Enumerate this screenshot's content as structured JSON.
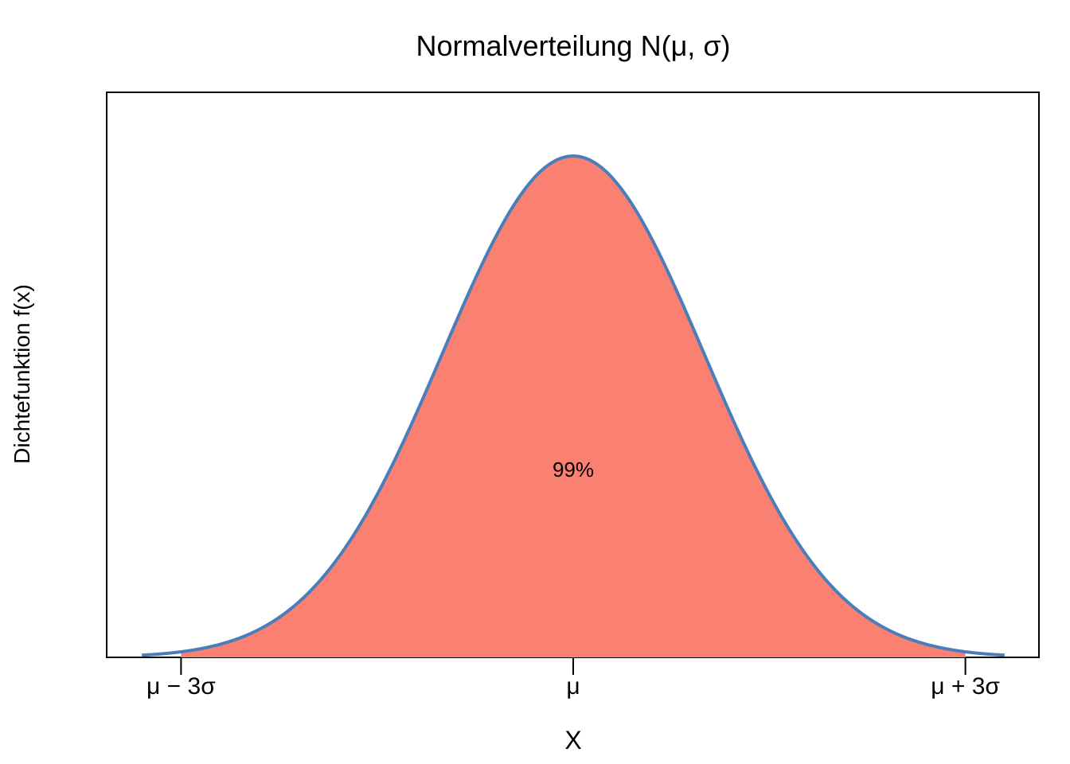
{
  "chart_data": {
    "type": "area",
    "title": "Normalverteilung N(μ, σ)",
    "xlabel": "X",
    "ylabel": "Dichtefunktion f(x)",
    "x_unit": "σ",
    "xlim": [
      -3.5,
      3.5
    ],
    "curve_range": [
      -3.3,
      3.3
    ],
    "shaded_range": [
      -3,
      3
    ],
    "shaded_label": "99%",
    "ticks": [
      {
        "value": -3,
        "label": "μ − 3σ"
      },
      {
        "value": 0,
        "label": "μ"
      },
      {
        "value": 3,
        "label": "μ + 3σ"
      }
    ],
    "grid": false,
    "legend": "none",
    "colors": {
      "fill": "#FA8072",
      "line": "#4A7EBB",
      "axis": "#000000"
    }
  }
}
